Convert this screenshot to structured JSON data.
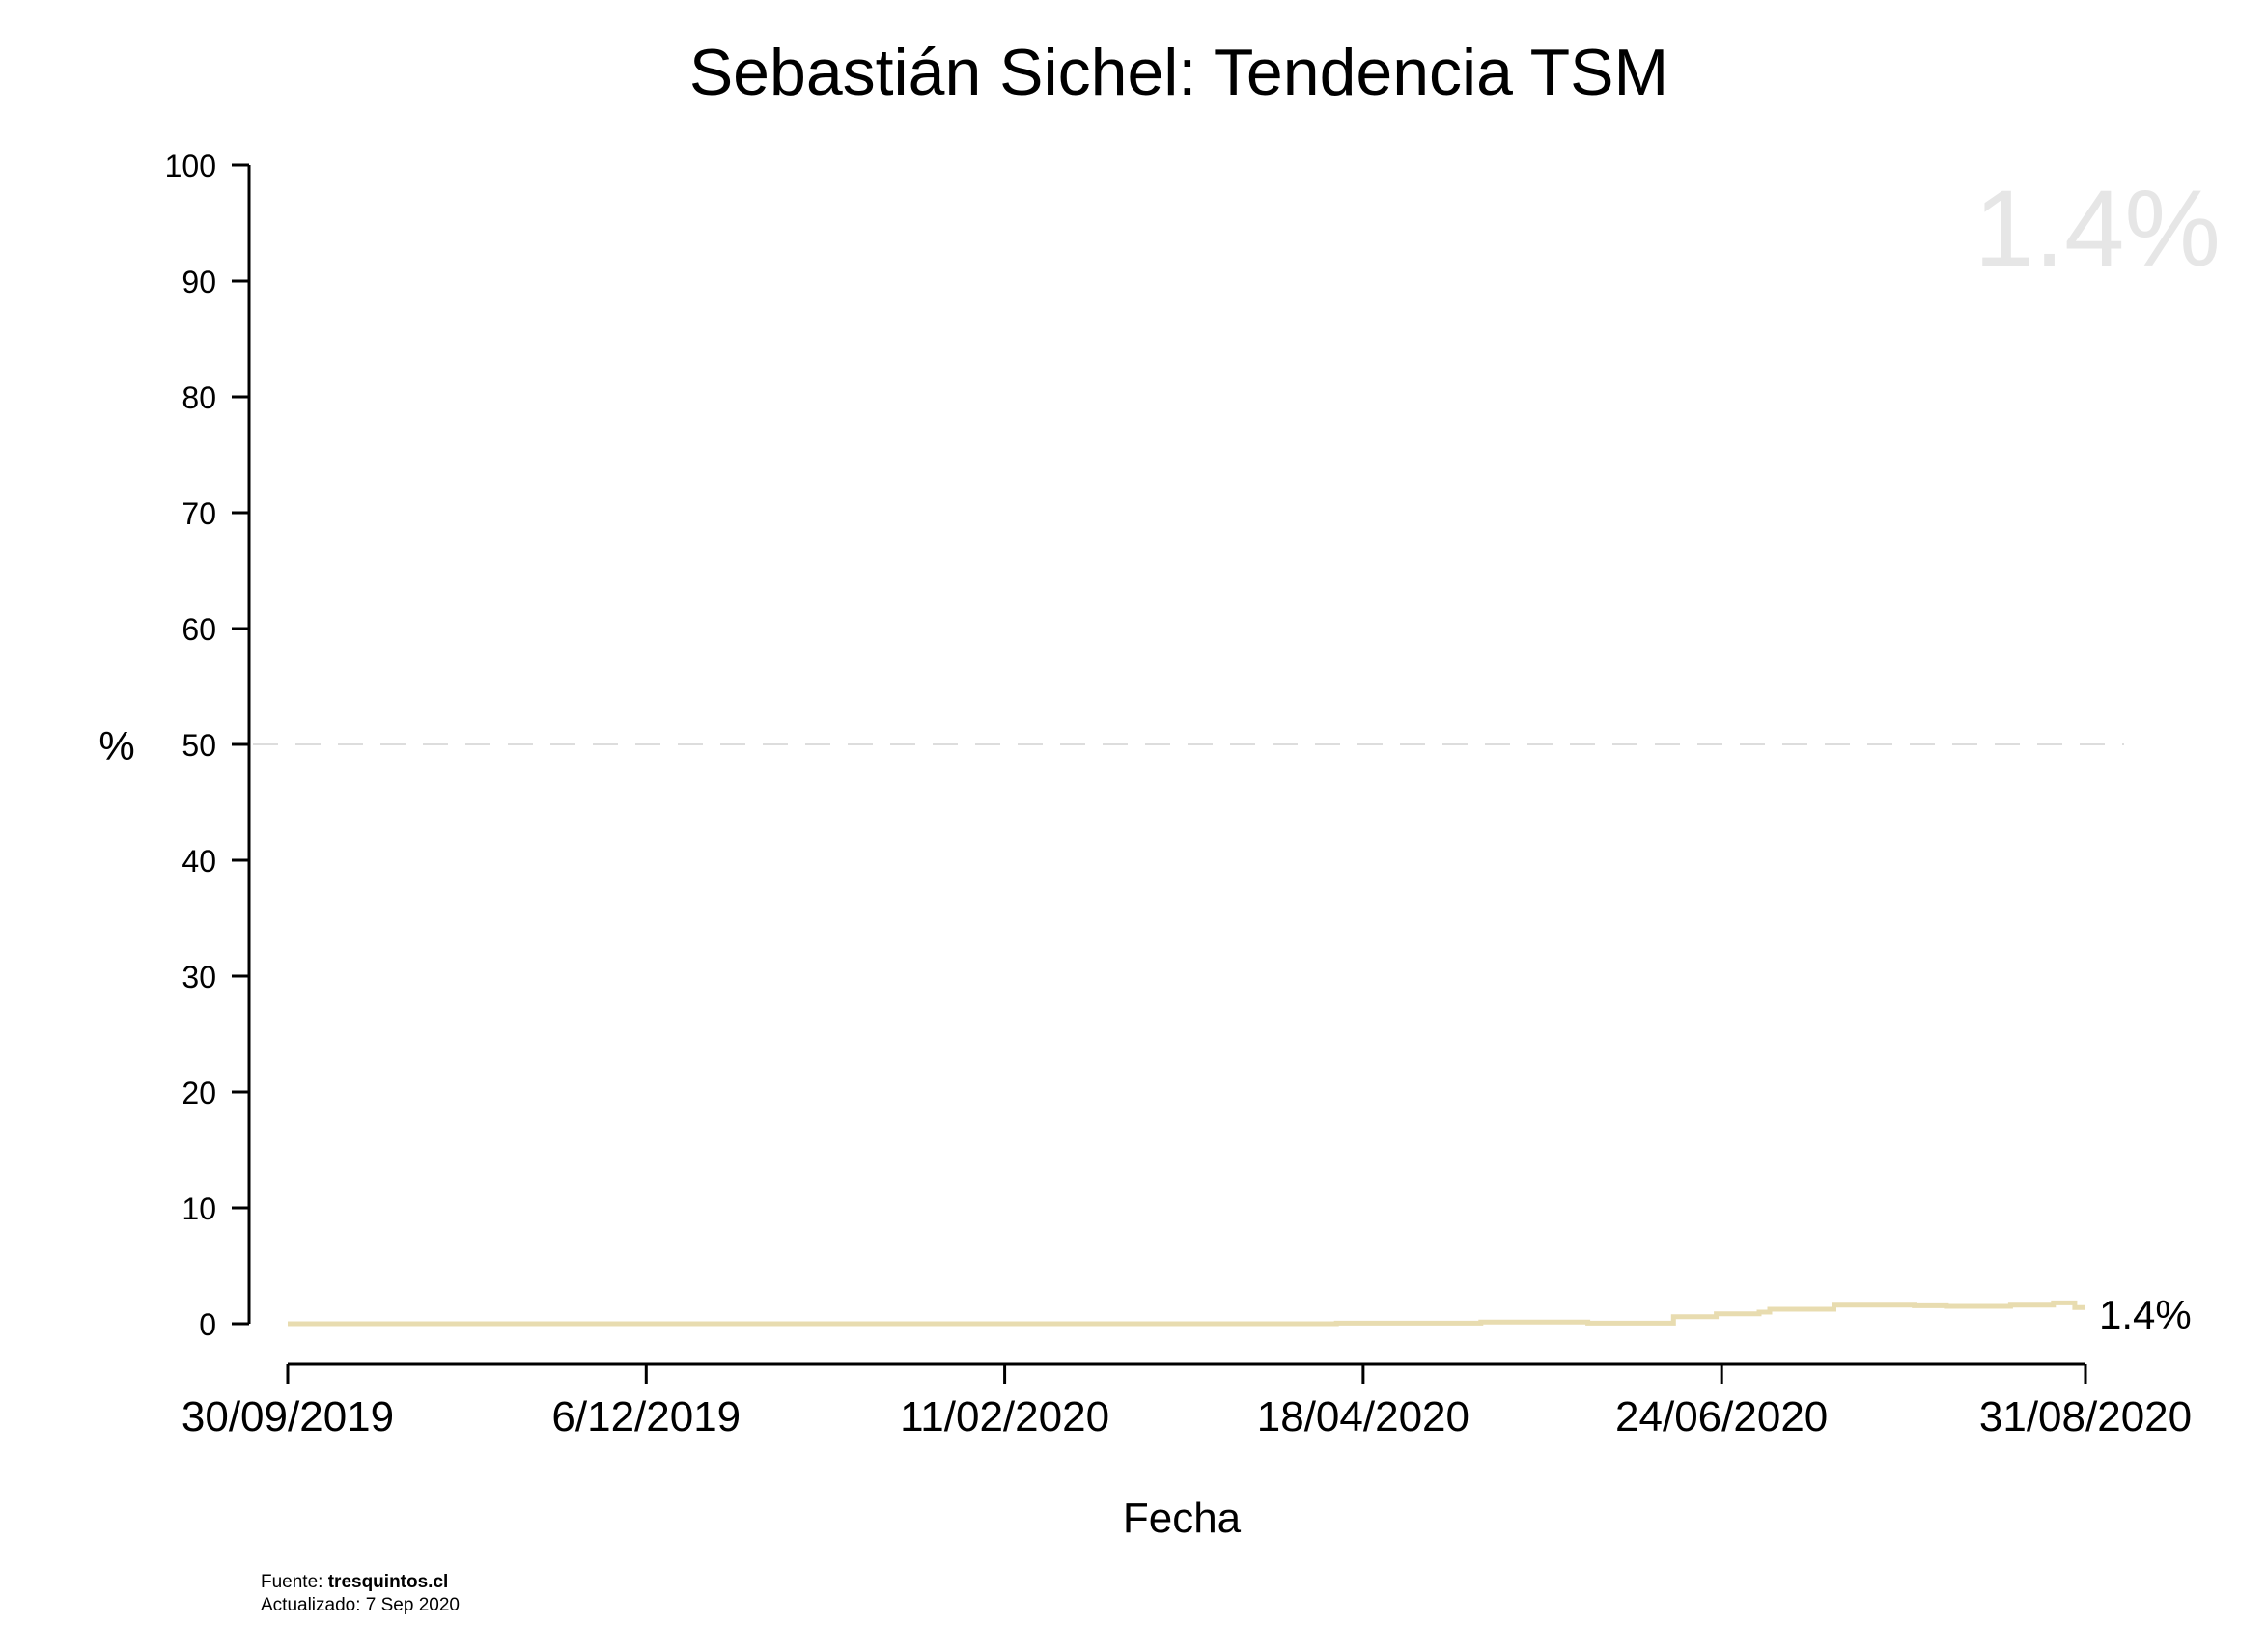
{
  "chart_data": {
    "type": "line",
    "title": "Sebastián Sichel: Tendencia TSM",
    "xlabel": "Fecha",
    "ylabel": "%",
    "ylim": [
      0,
      100
    ],
    "yticks": [
      0,
      10,
      20,
      30,
      40,
      50,
      60,
      70,
      80,
      90,
      100
    ],
    "xlim": [
      "2019-09-30",
      "2020-08-31"
    ],
    "xticks": [
      {
        "date": "2019-09-30",
        "label": "30/09/2019"
      },
      {
        "date": "2019-12-06",
        "label": "6/12/2019"
      },
      {
        "date": "2020-02-11",
        "label": "11/02/2020"
      },
      {
        "date": "2020-04-18",
        "label": "18/04/2020"
      },
      {
        "date": "2020-06-24",
        "label": "24/06/2020"
      },
      {
        "date": "2020-08-31",
        "label": "31/08/2020"
      }
    ],
    "reference_line": {
      "y": 50,
      "style": "dashed",
      "color": "#dddddd"
    },
    "series": [
      {
        "color": "#e8dcb0",
        "step": true,
        "points": [
          {
            "x": "2019-09-30",
            "y": 0.0
          },
          {
            "x": "2020-04-13",
            "y": 0.05
          },
          {
            "x": "2020-05-10",
            "y": 0.15
          },
          {
            "x": "2020-05-30",
            "y": 0.05
          },
          {
            "x": "2020-06-15",
            "y": 0.6
          },
          {
            "x": "2020-06-23",
            "y": 0.85
          },
          {
            "x": "2020-07-01",
            "y": 1.0
          },
          {
            "x": "2020-07-03",
            "y": 1.25
          },
          {
            "x": "2020-07-15",
            "y": 1.6
          },
          {
            "x": "2020-07-30",
            "y": 1.55
          },
          {
            "x": "2020-08-05",
            "y": 1.5
          },
          {
            "x": "2020-08-17",
            "y": 1.6
          },
          {
            "x": "2020-08-25",
            "y": 1.8
          },
          {
            "x": "2020-08-29",
            "y": 1.4
          },
          {
            "x": "2020-08-31",
            "y": 1.4
          }
        ]
      }
    ],
    "end_label": "1.4%",
    "watermark_value": "1.4%",
    "source_prefix": "Fuente: ",
    "source_site": "tresquintos.cl",
    "updated": "Actualizado: 7 Sep 2020"
  }
}
